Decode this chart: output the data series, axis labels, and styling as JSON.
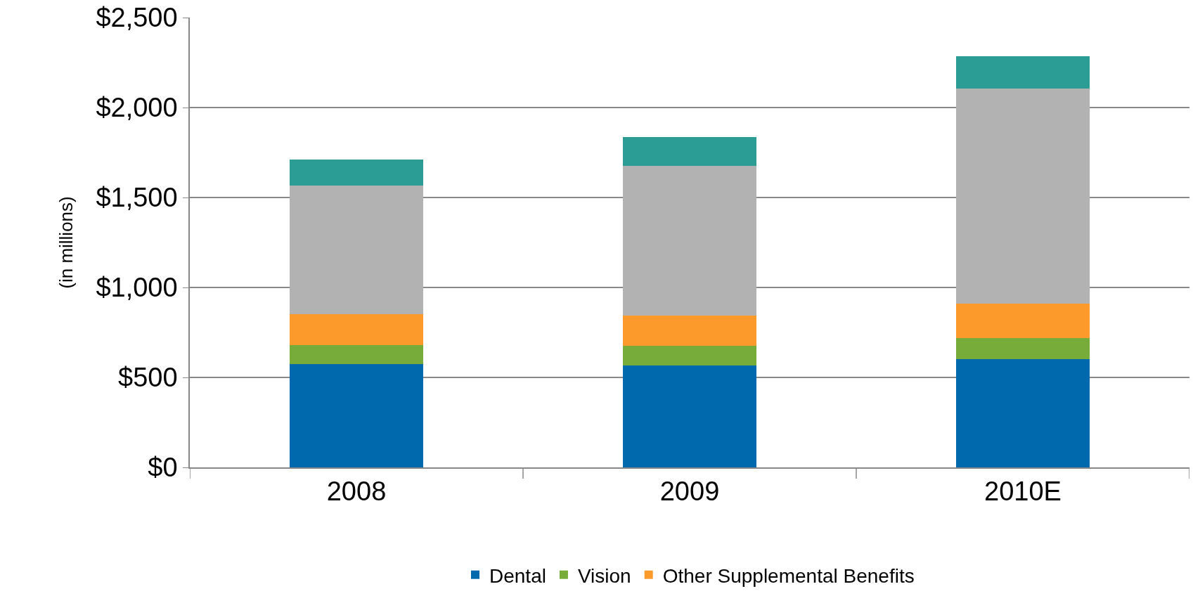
{
  "chart_data": {
    "type": "bar",
    "stacked": true,
    "ylabel": "(in millions)",
    "categories": [
      "2008",
      "2009",
      "2010E"
    ],
    "series": [
      {
        "name": "Dental",
        "color": "#0068ad",
        "values": [
          575,
          565,
          600
        ]
      },
      {
        "name": "Vision",
        "color": "#77ac3b",
        "values": [
          105,
          110,
          120
        ]
      },
      {
        "name": "Other Supplemental Benefits",
        "color": "#fd9a2c",
        "values": [
          170,
          170,
          190
        ]
      },
      {
        "color": "#b2b2b2",
        "values": [
          715,
          830,
          1195
        ]
      },
      {
        "color": "#2b9d94",
        "values": [
          145,
          160,
          180
        ]
      }
    ],
    "ylim": [
      0,
      2500
    ],
    "yticks": [
      {
        "value": 0,
        "label": "$0"
      },
      {
        "value": 500,
        "label": "$500"
      },
      {
        "value": 1000,
        "label": "$1,000"
      },
      {
        "value": 1500,
        "label": "$1,500"
      },
      {
        "value": 2000,
        "label": "$2,000"
      },
      {
        "value": 2500,
        "label": "$2,500"
      }
    ],
    "grid": "y",
    "legend": "bottom"
  }
}
